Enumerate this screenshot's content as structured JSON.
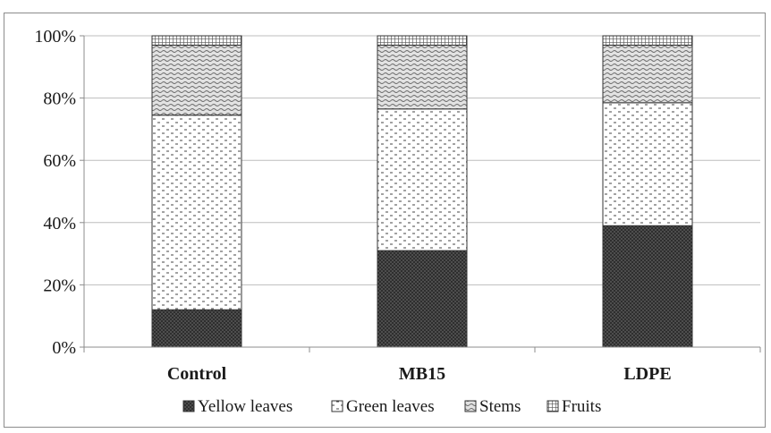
{
  "chart_data": {
    "type": "bar",
    "stacked": true,
    "percent": true,
    "categories": [
      "Control",
      "MB15",
      "LDPE"
    ],
    "series": [
      {
        "name": "Yellow leaves",
        "values": [
          12,
          31,
          39
        ],
        "pattern": "dense-crosshatch"
      },
      {
        "name": "Green leaves",
        "values": [
          62.5,
          45.5,
          39.5
        ],
        "pattern": "sparse-dashes"
      },
      {
        "name": "Stems",
        "values": [
          22.5,
          20.5,
          18.5
        ],
        "pattern": "waves"
      },
      {
        "name": "Fruits",
        "values": [
          3,
          3,
          3
        ],
        "pattern": "grid"
      }
    ],
    "ylim": [
      0,
      100
    ],
    "yticks": [
      "0%",
      "20%",
      "40%",
      "60%",
      "80%",
      "100%"
    ],
    "grid": true,
    "legend_position": "bottom",
    "colors": {
      "gridline": "#bdbdbd",
      "axis": "#8c8c8c",
      "bar_outline": "#333333"
    }
  }
}
